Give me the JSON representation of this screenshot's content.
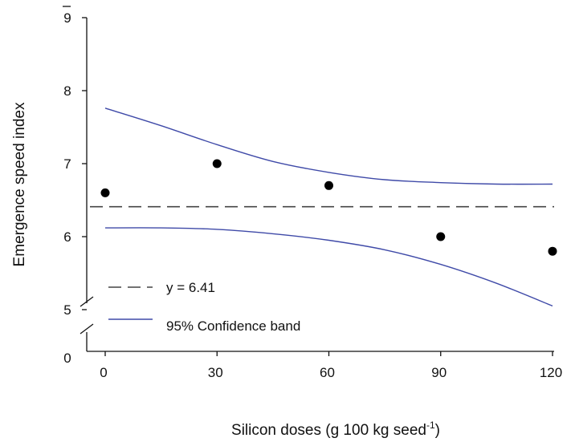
{
  "chart_data": {
    "type": "scatter",
    "xlabel": "Silicon doses (g 100 kg seed",
    "xlabel_sup": "-1",
    "xlabel_suffix": ")",
    "ylabel": "Emergence speed index",
    "x_ticks": [
      "0",
      "30",
      "60",
      "90",
      "120"
    ],
    "y_ticks": [
      "9",
      "8",
      "7",
      "6",
      "5",
      "0"
    ],
    "xlim": [
      0,
      120
    ],
    "ylim_upper_segment": [
      5,
      9
    ],
    "y_axis_break": true,
    "grid": false,
    "legend_position": "bottom-left",
    "points": [
      {
        "x": 0,
        "y": 6.6
      },
      {
        "x": 30,
        "y": 7.0
      },
      {
        "x": 60,
        "y": 6.7
      },
      {
        "x": 90,
        "y": 6.0
      },
      {
        "x": 120,
        "y": 5.8
      }
    ],
    "fit_line": {
      "label": "y = 6.41",
      "y": 6.41
    },
    "confidence_band": {
      "label": "95% Confidence band",
      "x": [
        0,
        15,
        30,
        45,
        60,
        75,
        90,
        105,
        120
      ],
      "upper": [
        7.76,
        7.52,
        7.26,
        7.03,
        6.88,
        6.78,
        6.74,
        6.72,
        6.72
      ],
      "lower": [
        6.12,
        6.12,
        6.1,
        6.04,
        5.95,
        5.82,
        5.62,
        5.36,
        5.05
      ]
    },
    "colors": {
      "axis": "#111111",
      "points": "#000000",
      "fit_line": "#444444",
      "confidence_band": "#3f4aa8"
    }
  }
}
